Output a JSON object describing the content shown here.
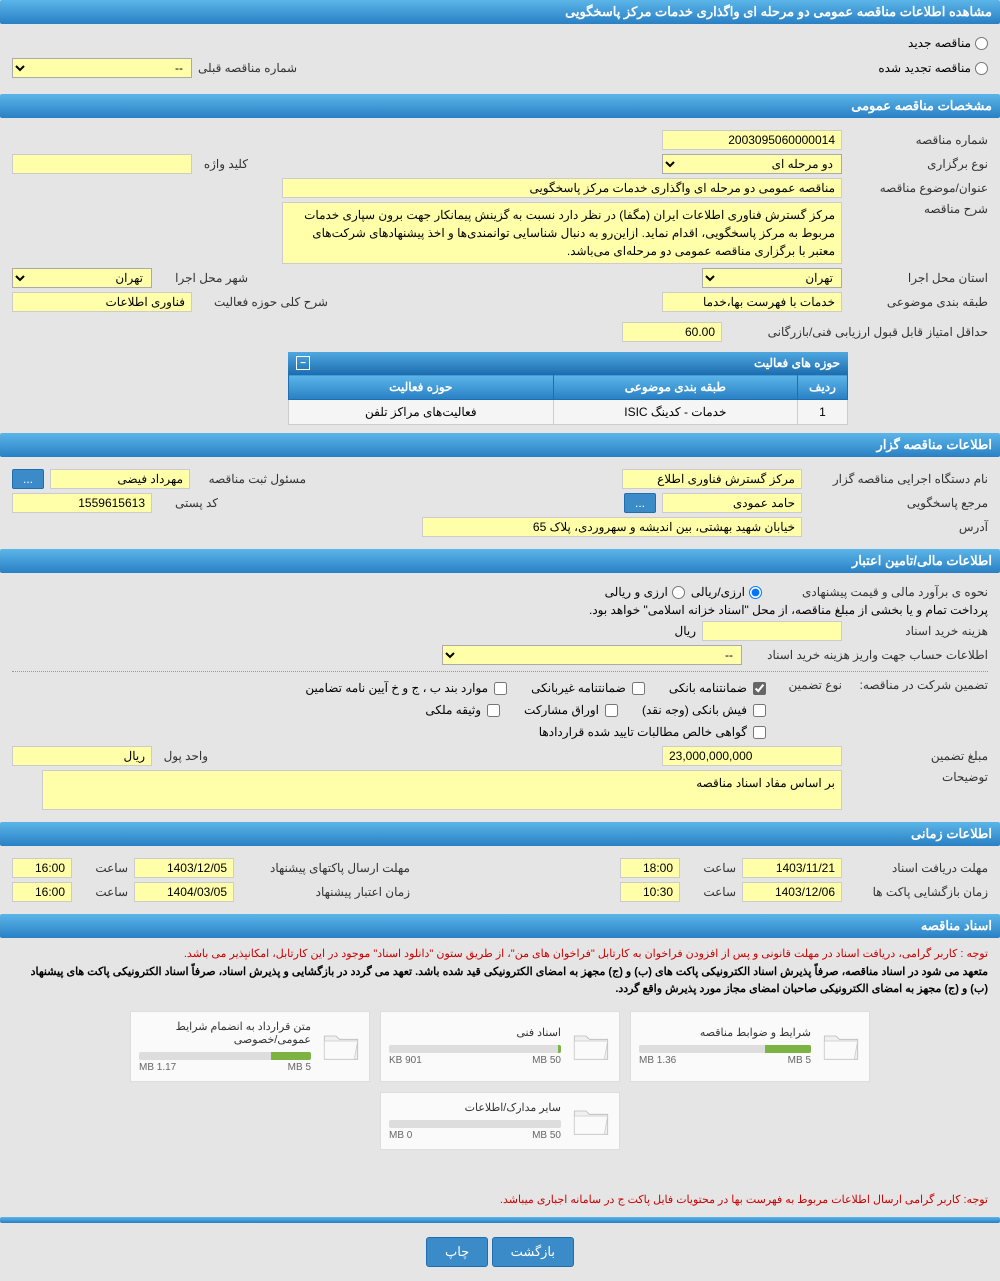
{
  "header": {
    "title": "مشاهده اطلاعات مناقصه عمومی دو مرحله ای واگذاری خدمات مرکز پاسخگویی"
  },
  "tender_type": {
    "new_label": "مناقصه جدید",
    "renewed_label": "مناقصه تجدید شده",
    "prev_number_label": "شماره مناقصه قبلی",
    "prev_number_value": "--"
  },
  "general": {
    "header": "مشخصات مناقصه عمومی",
    "number_label": "شماره مناقصه",
    "number_value": "2003095060000014",
    "type_label": "نوع برگزاری",
    "type_value": "دو مرحله ای",
    "keyword_label": "کلید واژه",
    "keyword_value": "",
    "subject_label": "عنوان/موضوع مناقصه",
    "subject_value": "مناقصه عمومی دو مرحله ای واگذاری خدمات مرکز پاسخگویی",
    "desc_label": "شرح مناقصه",
    "desc_value": "مرکز گسترش فناوری اطلاعات ایران (مگفا) در نظر دارد نسبت به گزینش پیمانکار جهت برون سپاری خدمات مربوط به مرکز پاسخگویی، اقدام نماید. ازاین‌رو به دنبال شناسایی توانمندی‌ها و اخذ پیشنهادهای شرکت‌های معتبر با برگزاری مناقصه عمومی دو مرحله‌ای می‌باشد.",
    "province_label": "استان محل اجرا",
    "province_value": "تهران",
    "city_label": "شهر محل اجرا",
    "city_value": "تهران",
    "category_label": "طبقه بندی موضوعی",
    "category_value": "خدمات با فهرست بها،خدما",
    "activity_desc_label": "شرح کلی حوزه فعالیت",
    "activity_desc_value": "فناوری اطلاعات",
    "min_score_label": "حداقل امتیاز قابل قبول ارزیابی فنی/بازرگانی",
    "min_score_value": "60.00"
  },
  "activity_table": {
    "header": "حوزه های فعالیت",
    "col_row": "ردیف",
    "col_category": "طبقه بندی موضوعی",
    "col_activity": "حوزه فعالیت",
    "rows": [
      {
        "idx": "1",
        "category": "خدمات - کدینگ ISIC",
        "activity": "فعالیت‌های مراکز تلفن"
      }
    ]
  },
  "organizer": {
    "header": "اطلاعات مناقصه گزار",
    "org_label": "نام دستگاه اجرایی مناقصه گزار",
    "org_value": "مرکز گسترش فناوری اطلاع",
    "reg_officer_label": "مسئول ثبت مناقصه",
    "reg_officer_value": "مهرداد فیضی",
    "response_label": "مرجع پاسخگویی",
    "response_value": "حامد عمودی",
    "postal_label": "کد پستی",
    "postal_value": "1559615613",
    "address_label": "آدرس",
    "address_value": "خیابان شهید بهشتی، بین اندیشه و سهروردی، پلاک 65"
  },
  "financial": {
    "header": "اطلاعات مالی/تامین اعتبار",
    "estimate_label": "نحوه ی برآورد مالی و قیمت پیشنهادی",
    "estimate_opt1": "ارزی/ریالی",
    "estimate_opt2": "ارزی و ریالی",
    "payment_note": "پرداخت تمام و یا بخشی از مبلغ مناقصه، از محل \"اسناد خزانه اسلامی\" خواهد بود.",
    "doc_cost_label": "هزینه خرید اسناد",
    "doc_cost_unit": "ریال",
    "account_label": "اطلاعات حساب جهت واریز هزینه خرید اسناد",
    "account_value": "--",
    "guarantee_label": "تضمین شرکت در مناقصه:",
    "guarantee_type_label": "نوع تضمین",
    "opt_bank_guarantee": "ضمانتنامه بانکی",
    "opt_nonbank_guarantee": "ضمانتنامه غیربانکی",
    "opt_items_bpj": "موارد بند ب ، ج و خ آیین نامه تضامین",
    "opt_bank_receipt": "فیش بانکی (وجه نقد)",
    "opt_participation": "اوراق مشارکت",
    "opt_property": "وثیقه ملکی",
    "opt_certificate": "گواهی خالص مطالبات تایید شده قراردادها",
    "guarantee_amount_label": "مبلغ تضمین",
    "guarantee_amount_value": "23,000,000,000",
    "currency_label": "واحد پول",
    "currency_value": "ریال",
    "notes_label": "توضیحات",
    "notes_value": "بر اساس مفاد اسناد مناقصه"
  },
  "timing": {
    "header": "اطلاعات زمانی",
    "doc_receive_label": "مهلت دریافت اسناد",
    "doc_receive_date": "1403/11/21",
    "doc_receive_time": "18:00",
    "proposal_send_label": "مهلت ارسال پاکتهای پیشنهاد",
    "proposal_send_date": "1403/12/05",
    "proposal_send_time": "16:00",
    "opening_label": "زمان بازگشایی پاکت ها",
    "opening_date": "1403/12/06",
    "opening_time": "10:30",
    "validity_label": "زمان اعتبار پیشنهاد",
    "validity_date": "1404/03/05",
    "validity_time": "16:00",
    "time_label": "ساعت"
  },
  "documents": {
    "header": "اسناد مناقصه",
    "note1": "توجه : کاربر گرامی، دریافت اسناد در مهلت قانونی و پس از افزودن فراخوان به کارتابل \"فراخوان های من\"، از طریق ستون \"دانلود اسناد\" موجود در این کارتابل، امکانپذیر می باشد.",
    "note2": "متعهد می شود در اسناد مناقصه، صرفاً پذیرش اسناد الکترونیکی پاکت های (ب) و (ج) مجهز به امضای الکترونیکی قید شده باشد. تعهد می گردد در بازگشایی و پذیرش اسناد، صرفاً اسناد الکترونیکی پاکت های پیشنهاد (ب) و (ج) مجهز به امضای الکترونیکی صاحبان امضای مجاز مورد پذیرش واقع گردد.",
    "files": [
      {
        "title": "شرایط و ضوابط مناقصه",
        "used": "1.36 MB",
        "total": "5 MB",
        "pct": 27
      },
      {
        "title": "اسناد فنی",
        "used": "901 KB",
        "total": "50 MB",
        "pct": 2
      },
      {
        "title": "متن قرارداد به انضمام شرایط عمومی/خصوصی",
        "used": "1.17 MB",
        "total": "5 MB",
        "pct": 23
      },
      {
        "title": "سایر مدارک/اطلاعات",
        "used": "0 MB",
        "total": "50 MB",
        "pct": 0
      }
    ],
    "footer_note": "توجه: کاربر گرامی ارسال اطلاعات مربوط به فهرست بها در محتویات فایل پاکت ج در سامانه اجباری میباشد."
  },
  "buttons": {
    "back": "بازگشت",
    "print": "چاپ"
  },
  "colors": {
    "header_grad_top": "#5bb5e8",
    "header_grad_bottom": "#2980c4",
    "field_bg": "#ffffaa",
    "page_bg": "#e5e5e5",
    "red": "#c00",
    "progress": "#7cb342"
  }
}
